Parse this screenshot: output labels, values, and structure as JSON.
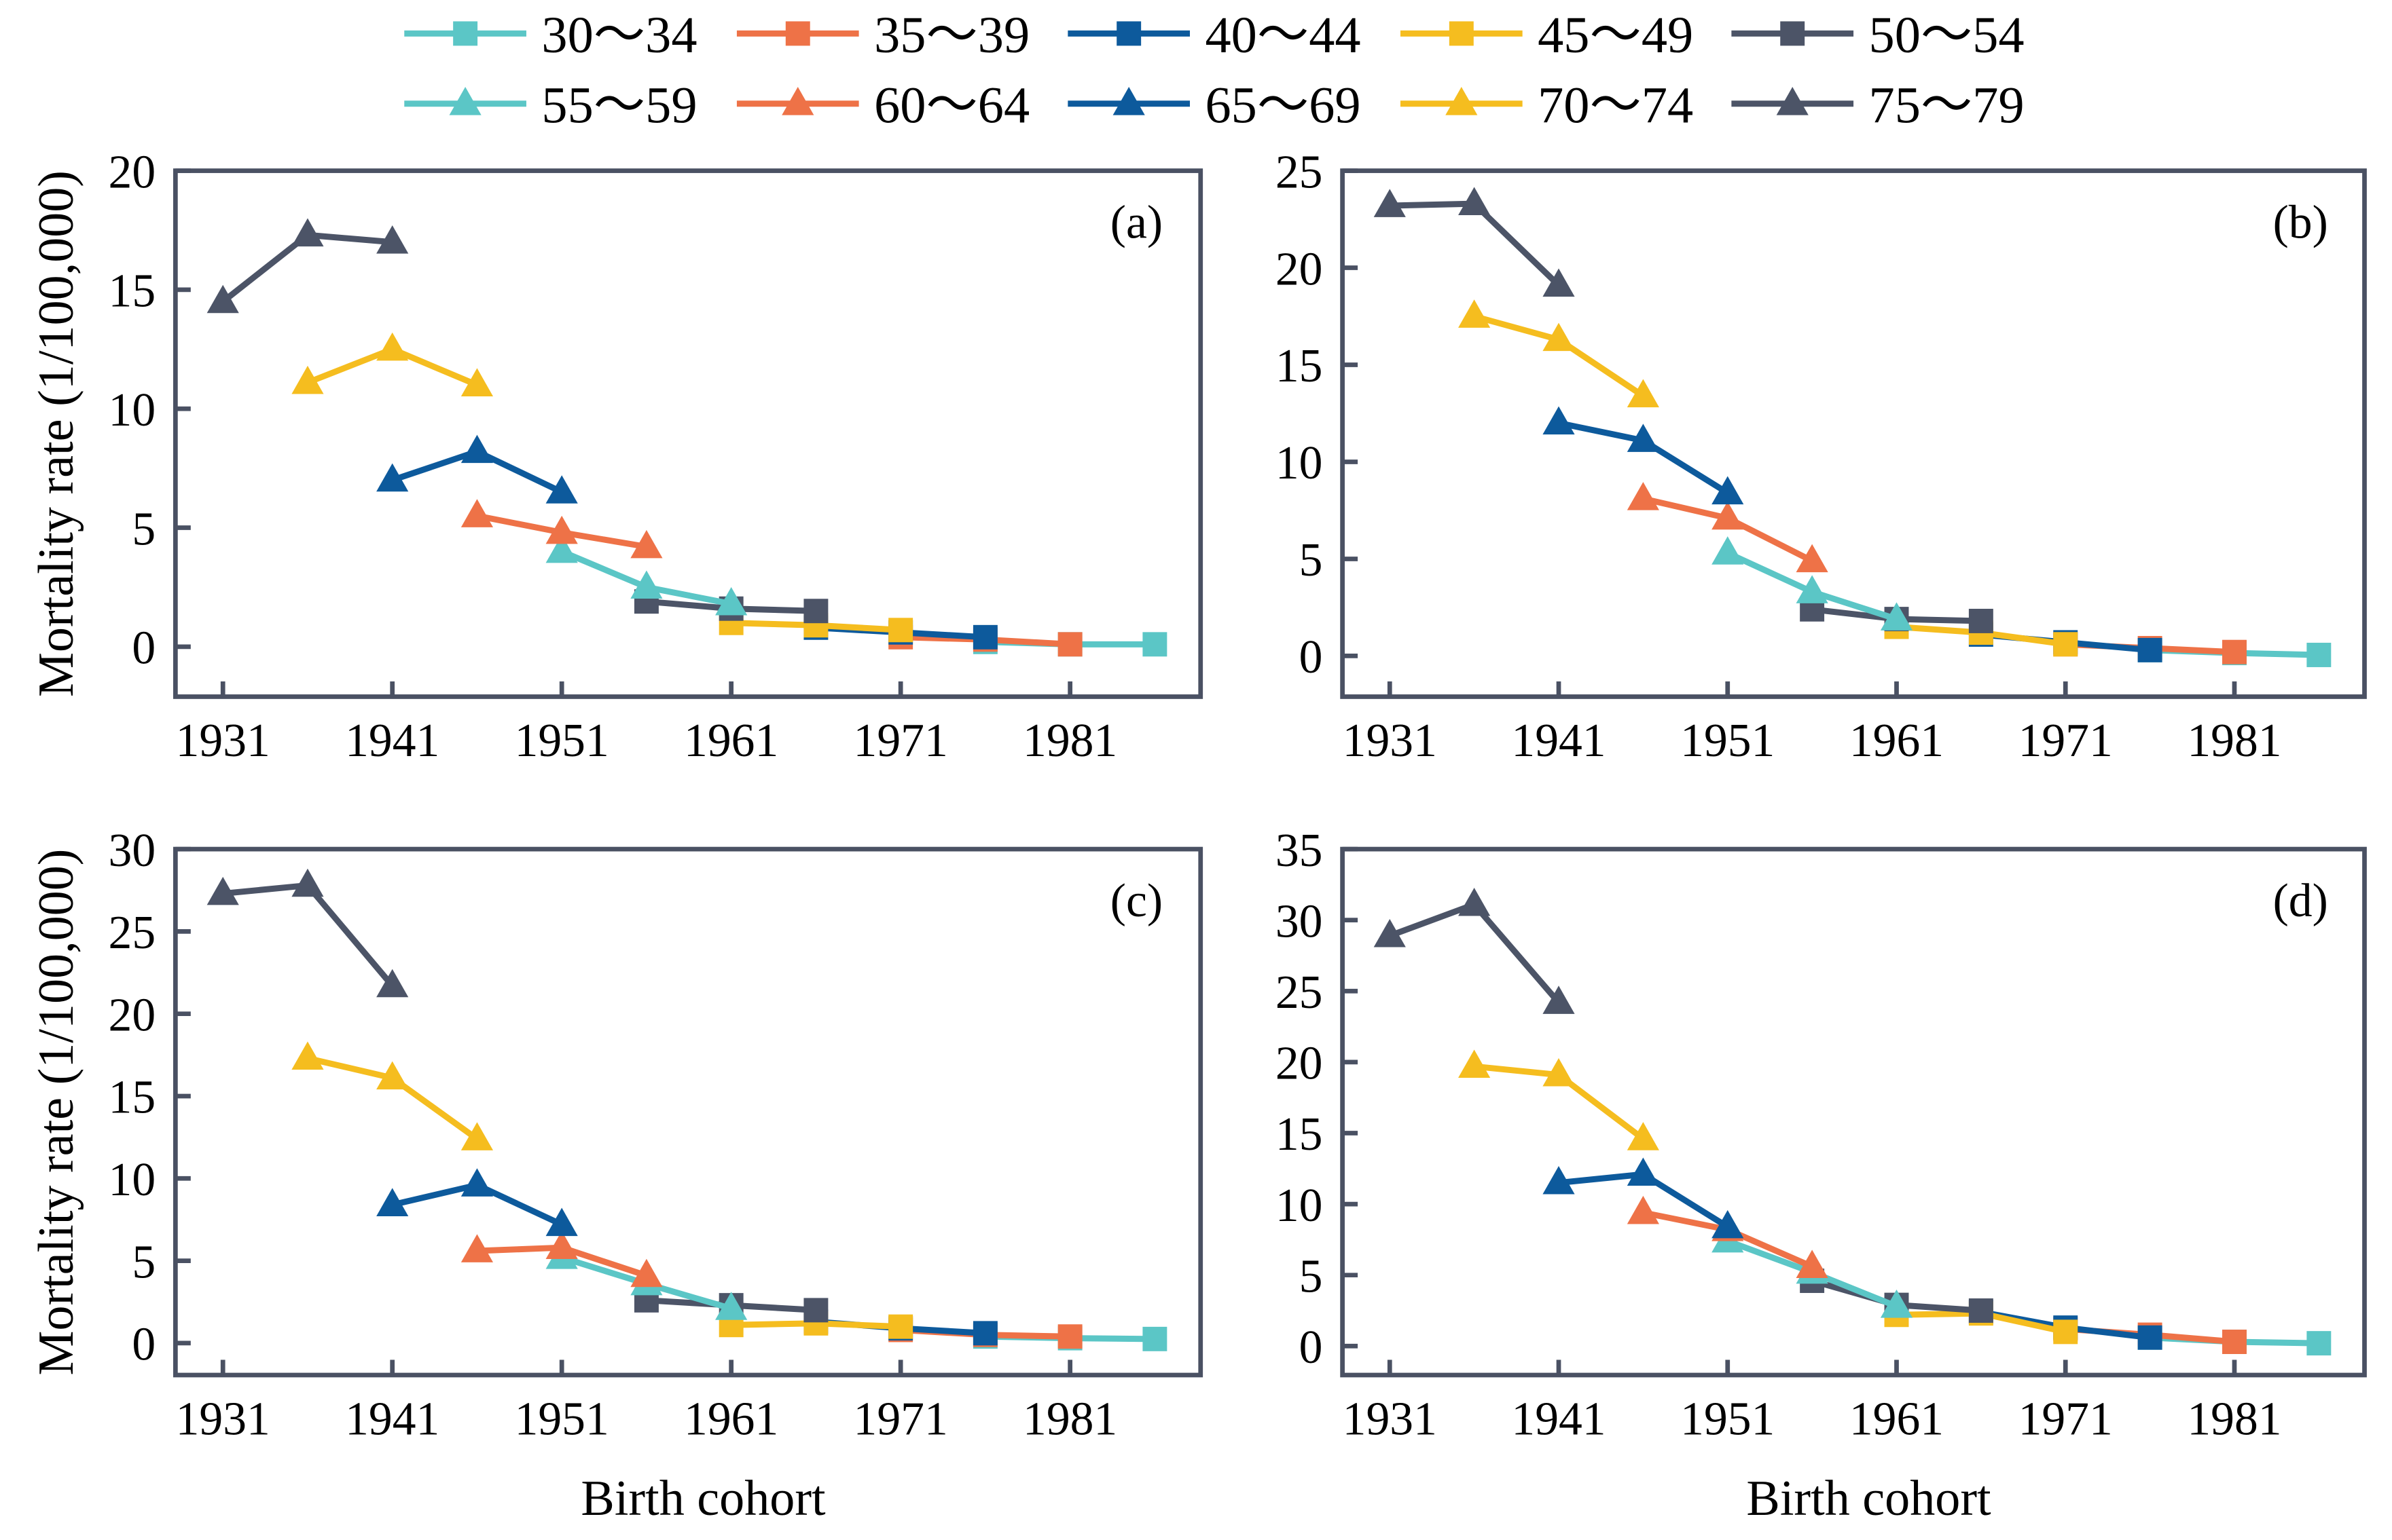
{
  "axis_color": "#4a5163",
  "legend": [
    {
      "label": "30～34",
      "color": "#5bc6c6",
      "marker": "square"
    },
    {
      "label": "35～39",
      "color": "#ee7247",
      "marker": "square"
    },
    {
      "label": "40～44",
      "color": "#0d5a9c",
      "marker": "square"
    },
    {
      "label": "45～49",
      "color": "#f5bd1f",
      "marker": "square"
    },
    {
      "label": "50～54",
      "color": "#4c5467",
      "marker": "square"
    },
    {
      "label": "55～59",
      "color": "#5bc6c6",
      "marker": "triangle"
    },
    {
      "label": "60～64",
      "color": "#ee7247",
      "marker": "triangle"
    },
    {
      "label": "65～69",
      "color": "#0d5a9c",
      "marker": "triangle"
    },
    {
      "label": "70～74",
      "color": "#f5bd1f",
      "marker": "triangle"
    },
    {
      "label": "75～79",
      "color": "#4c5467",
      "marker": "triangle"
    }
  ],
  "chart_data": [
    {
      "type": "line",
      "panel_label": "(a)",
      "ylabel": "Mortality rate (1/100,000)",
      "xlim": [
        1928.2,
        1988.7
      ],
      "ylim": [
        -2.1,
        20
      ],
      "x_ticks": [
        1931,
        1941,
        1951,
        1961,
        1971,
        1981
      ],
      "y_ticks": [
        0,
        5,
        10,
        15,
        20
      ],
      "series": [
        {
          "legend_index": 0,
          "x": [
            1976,
            1981,
            1986
          ],
          "y": [
            0.2,
            0.1,
            0.1
          ]
        },
        {
          "legend_index": 1,
          "x": [
            1971,
            1976,
            1981
          ],
          "y": [
            0.4,
            0.3,
            0.1
          ]
        },
        {
          "legend_index": 2,
          "x": [
            1966,
            1971,
            1976
          ],
          "y": [
            0.8,
            0.6,
            0.4
          ]
        },
        {
          "legend_index": 3,
          "x": [
            1961,
            1966,
            1971
          ],
          "y": [
            1.0,
            0.9,
            0.7
          ]
        },
        {
          "legend_index": 4,
          "x": [
            1956,
            1961,
            1966
          ],
          "y": [
            1.9,
            1.6,
            1.5
          ]
        },
        {
          "legend_index": 5,
          "x": [
            1951,
            1956,
            1961
          ],
          "y": [
            4.0,
            2.5,
            1.8
          ]
        },
        {
          "legend_index": 6,
          "x": [
            1946,
            1951,
            1956
          ],
          "y": [
            5.5,
            4.8,
            4.2
          ]
        },
        {
          "legend_index": 7,
          "x": [
            1941,
            1946,
            1951
          ],
          "y": [
            7.0,
            8.2,
            6.5
          ]
        },
        {
          "legend_index": 8,
          "x": [
            1936,
            1941,
            1946
          ],
          "y": [
            11.1,
            12.5,
            11.0
          ]
        },
        {
          "legend_index": 9,
          "x": [
            1931,
            1936,
            1941
          ],
          "y": [
            14.5,
            17.3,
            17.0
          ]
        }
      ]
    },
    {
      "type": "line",
      "panel_label": "(b)",
      "xlim": [
        1928.2,
        1988.7
      ],
      "ylim": [
        -2.1,
        25
      ],
      "x_ticks": [
        1931,
        1941,
        1951,
        1961,
        1971,
        1981
      ],
      "y_ticks": [
        0,
        5,
        10,
        15,
        20,
        25
      ],
      "series": [
        {
          "legend_index": 0,
          "x": [
            1976,
            1981,
            1986
          ],
          "y": [
            0.3,
            0.15,
            0.05
          ]
        },
        {
          "legend_index": 1,
          "x": [
            1971,
            1976,
            1981
          ],
          "y": [
            0.6,
            0.4,
            0.2
          ]
        },
        {
          "legend_index": 2,
          "x": [
            1966,
            1971,
            1976
          ],
          "y": [
            1.1,
            0.7,
            0.3
          ]
        },
        {
          "legend_index": 3,
          "x": [
            1961,
            1966,
            1971
          ],
          "y": [
            1.5,
            1.2,
            0.6
          ]
        },
        {
          "legend_index": 4,
          "x": [
            1956,
            1961,
            1966
          ],
          "y": [
            2.4,
            1.9,
            1.8
          ]
        },
        {
          "legend_index": 5,
          "x": [
            1951,
            1956,
            1961
          ],
          "y": [
            5.3,
            3.3,
            1.9
          ]
        },
        {
          "legend_index": 6,
          "x": [
            1946,
            1951,
            1956
          ],
          "y": [
            8.1,
            7.1,
            4.9
          ]
        },
        {
          "legend_index": 7,
          "x": [
            1941,
            1946,
            1951
          ],
          "y": [
            12.0,
            11.1,
            8.4
          ]
        },
        {
          "legend_index": 8,
          "x": [
            1936,
            1941,
            1946
          ],
          "y": [
            17.5,
            16.3,
            13.4
          ]
        },
        {
          "legend_index": 9,
          "x": [
            1931,
            1936,
            1941
          ],
          "y": [
            23.2,
            23.3,
            19.1
          ]
        }
      ]
    },
    {
      "type": "line",
      "panel_label": "(c)",
      "xlabel": "Birth cohort",
      "ylabel": "Mortality rate (1/100,000)",
      "xlim": [
        1928.2,
        1988.7
      ],
      "ylim": [
        -1.94,
        30
      ],
      "x_ticks": [
        1931,
        1941,
        1951,
        1961,
        1971,
        1981
      ],
      "y_ticks": [
        0,
        5,
        10,
        15,
        20,
        25,
        30
      ],
      "series": [
        {
          "legend_index": 0,
          "x": [
            1976,
            1981,
            1986
          ],
          "y": [
            0.4,
            0.3,
            0.25
          ]
        },
        {
          "legend_index": 1,
          "x": [
            1971,
            1976,
            1981
          ],
          "y": [
            0.8,
            0.5,
            0.4
          ]
        },
        {
          "legend_index": 2,
          "x": [
            1966,
            1971,
            1976
          ],
          "y": [
            1.3,
            0.9,
            0.6
          ]
        },
        {
          "legend_index": 3,
          "x": [
            1961,
            1966,
            1971
          ],
          "y": [
            1.1,
            1.2,
            1.0
          ]
        },
        {
          "legend_index": 4,
          "x": [
            1956,
            1961,
            1966
          ],
          "y": [
            2.6,
            2.3,
            2.0
          ]
        },
        {
          "legend_index": 5,
          "x": [
            1951,
            1956,
            1961
          ],
          "y": [
            5.2,
            3.6,
            2.1
          ]
        },
        {
          "legend_index": 6,
          "x": [
            1946,
            1951,
            1956
          ],
          "y": [
            5.6,
            5.8,
            4.1
          ]
        },
        {
          "legend_index": 7,
          "x": [
            1941,
            1946,
            1951
          ],
          "y": [
            8.4,
            9.6,
            7.2
          ]
        },
        {
          "legend_index": 8,
          "x": [
            1936,
            1941,
            1946
          ],
          "y": [
            17.3,
            16.1,
            12.4
          ]
        },
        {
          "legend_index": 9,
          "x": [
            1931,
            1936,
            1941
          ],
          "y": [
            27.3,
            27.8,
            21.7
          ]
        }
      ]
    },
    {
      "type": "line",
      "panel_label": "(d)",
      "xlabel": "Birth cohort",
      "xlim": [
        1928.2,
        1988.7
      ],
      "ylim": [
        -2.04,
        35
      ],
      "x_ticks": [
        1931,
        1941,
        1951,
        1961,
        1971,
        1981
      ],
      "y_ticks": [
        0,
        5,
        10,
        15,
        20,
        25,
        30,
        35
      ],
      "series": [
        {
          "legend_index": 0,
          "x": [
            1976,
            1981,
            1986
          ],
          "y": [
            0.6,
            0.3,
            0.2
          ]
        },
        {
          "legend_index": 1,
          "x": [
            1971,
            1976,
            1981
          ],
          "y": [
            1.2,
            0.8,
            0.3
          ]
        },
        {
          "legend_index": 2,
          "x": [
            1966,
            1971,
            1976
          ],
          "y": [
            2.4,
            1.3,
            0.6
          ]
        },
        {
          "legend_index": 3,
          "x": [
            1961,
            1966,
            1971
          ],
          "y": [
            2.2,
            2.3,
            1.0
          ]
        },
        {
          "legend_index": 4,
          "x": [
            1956,
            1961,
            1966
          ],
          "y": [
            4.6,
            2.9,
            2.5
          ]
        },
        {
          "legend_index": 5,
          "x": [
            1951,
            1956,
            1961
          ],
          "y": [
            7.4,
            5.2,
            2.8
          ]
        },
        {
          "legend_index": 6,
          "x": [
            1946,
            1951,
            1956
          ],
          "y": [
            9.4,
            8.2,
            5.6
          ]
        },
        {
          "legend_index": 7,
          "x": [
            1941,
            1946,
            1951
          ],
          "y": [
            11.5,
            12.1,
            8.4
          ]
        },
        {
          "legend_index": 8,
          "x": [
            1936,
            1941,
            1946
          ],
          "y": [
            19.7,
            19.1,
            14.6
          ]
        },
        {
          "legend_index": 9,
          "x": [
            1931,
            1936,
            1941
          ],
          "y": [
            28.9,
            31.1,
            24.2
          ]
        }
      ]
    }
  ]
}
